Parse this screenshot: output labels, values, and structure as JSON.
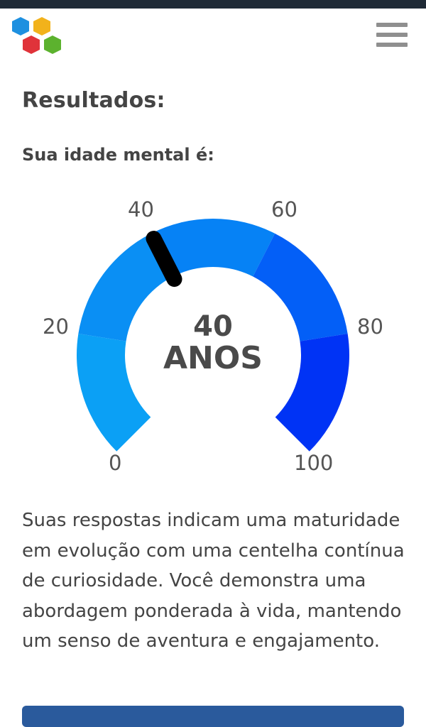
{
  "header": {
    "logo_icon": "hexagon-cluster-logo",
    "menu_icon": "hamburger-icon"
  },
  "results": {
    "title": "Resultados:",
    "subtitle": "Sua idade mental é:"
  },
  "gauge": {
    "min": 0,
    "max": 100,
    "value": 40,
    "value_label": "40",
    "unit_label": "ANOS",
    "ticks": [
      "0",
      "20",
      "40",
      "60",
      "80",
      "100"
    ],
    "segment_colors": [
      "#0ba0f5",
      "#0a8ff4",
      "#0682f5",
      "#035ff7",
      "#0033f5"
    ]
  },
  "description": "Suas respostas indicam uma maturidade em evolução com uma centelha contínua de curiosidade. Você demonstra uma abordagem ponderada à vida, mantendo um senso de aventura e engajamento."
}
